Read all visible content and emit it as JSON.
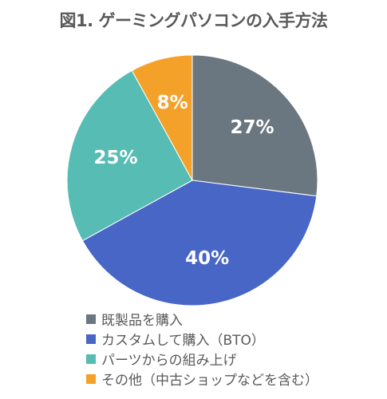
{
  "chart_data": {
    "type": "pie",
    "title": "図1. ゲーミングパソコンの入手方法",
    "slices": [
      {
        "label": "既製品を購入",
        "value": 27,
        "display": "27%",
        "color": "#6b7780"
      },
      {
        "label": "カスタムして購入（BTO）",
        "value": 40,
        "display": "40%",
        "color": "#4766c6"
      },
      {
        "label": "パーツからの組み上げ",
        "value": 25,
        "display": "25%",
        "color": "#56bcb4"
      },
      {
        "label": "その他（中古ショップなどを含む）",
        "value": 8,
        "display": "8%",
        "color": "#f4a12a"
      }
    ],
    "legend_position": "bottom-left",
    "start_angle_deg": 0,
    "direction": "clockwise"
  }
}
